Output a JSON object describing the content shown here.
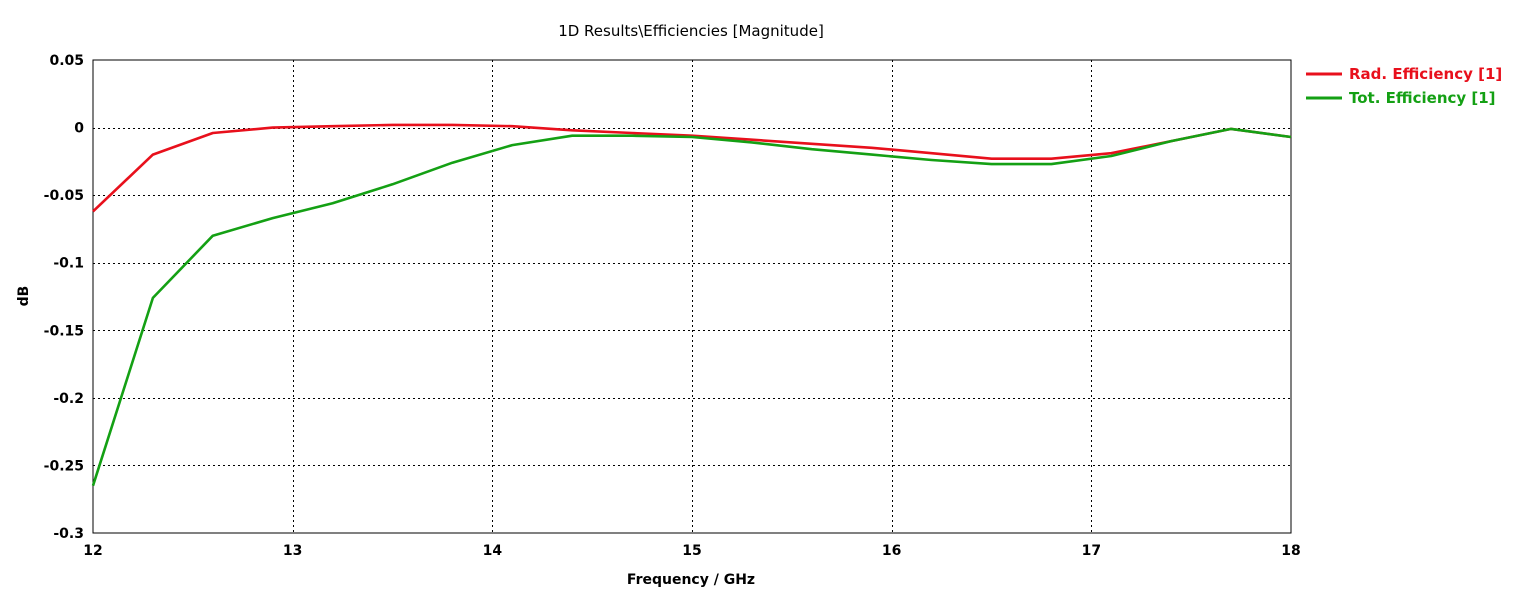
{
  "chart_data": {
    "type": "line",
    "title": "1D Results\\Efficiencies [Magnitude]",
    "xlabel": "Frequency / GHz",
    "ylabel": "dB",
    "xlim": [
      12,
      18
    ],
    "ylim": [
      -0.3,
      0.05
    ],
    "xticks": [
      12,
      13,
      14,
      15,
      16,
      17,
      18
    ],
    "xtick_labels": [
      "12",
      "13",
      "14",
      "15",
      "16",
      "17",
      "18"
    ],
    "yticks": [
      0.05,
      0,
      -0.05,
      -0.1,
      -0.15,
      -0.2,
      -0.25,
      -0.3
    ],
    "ytick_labels": [
      "0.05",
      "0",
      "-0.05",
      "-0.1",
      "-0.15",
      "-0.2",
      "-0.25",
      "-0.3"
    ],
    "grid": true,
    "legend_position": "right",
    "series": [
      {
        "name": "Rad. Efficiency [1]",
        "color": "#e8101c",
        "x": [
          12.0,
          12.3,
          12.6,
          12.9,
          13.2,
          13.5,
          13.8,
          14.1,
          14.4,
          14.7,
          15.0,
          15.3,
          15.6,
          15.9,
          16.2,
          16.5,
          16.8,
          17.1,
          17.4,
          17.7,
          18.0
        ],
        "y": [
          -0.062,
          -0.02,
          -0.004,
          0.0,
          0.001,
          0.002,
          0.002,
          0.001,
          -0.002,
          -0.004,
          -0.006,
          -0.009,
          -0.012,
          -0.015,
          -0.019,
          -0.023,
          -0.023,
          -0.019,
          -0.01,
          -0.001,
          -0.007
        ]
      },
      {
        "name": "Tot. Efficiency [1]",
        "color": "#14a014",
        "x": [
          12.0,
          12.3,
          12.6,
          12.9,
          13.2,
          13.5,
          13.8,
          14.1,
          14.4,
          14.7,
          15.0,
          15.3,
          15.6,
          15.9,
          16.2,
          16.5,
          16.8,
          17.1,
          17.4,
          17.7,
          18.0
        ],
        "y": [
          -0.265,
          -0.126,
          -0.08,
          -0.067,
          -0.056,
          -0.042,
          -0.026,
          -0.013,
          -0.006,
          -0.006,
          -0.007,
          -0.011,
          -0.016,
          -0.02,
          -0.024,
          -0.027,
          -0.027,
          -0.021,
          -0.01,
          -0.001,
          -0.007
        ]
      }
    ]
  }
}
